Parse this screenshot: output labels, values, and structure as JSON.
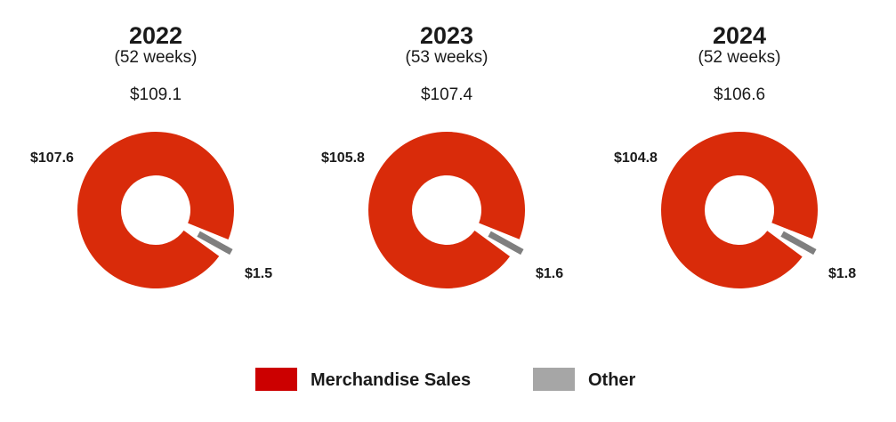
{
  "colors": {
    "merchandise": "#d92b0a",
    "merchandise_legend": "#cc0000",
    "other": "#7f7f7f",
    "other_legend": "#a6a6a6"
  },
  "chart_data": [
    {
      "type": "pie",
      "title": "2022",
      "subtitle": "(52 weeks)",
      "total_label": "$109.1",
      "total": 109.1,
      "slices": [
        {
          "name": "Merchandise Sales",
          "value": 107.6,
          "label": "$107.6"
        },
        {
          "name": "Other",
          "value": 1.5,
          "label": "$1.5"
        }
      ]
    },
    {
      "type": "pie",
      "title": "2023",
      "subtitle": "(53 weeks)",
      "total_label": "$107.4",
      "total": 107.4,
      "slices": [
        {
          "name": "Merchandise Sales",
          "value": 105.8,
          "label": "$105.8"
        },
        {
          "name": "Other",
          "value": 1.6,
          "label": "$1.6"
        }
      ]
    },
    {
      "type": "pie",
      "title": "2024",
      "subtitle": "(52 weeks)",
      "total_label": "$106.6",
      "total": 106.6,
      "slices": [
        {
          "name": "Merchandise Sales",
          "value": 104.8,
          "label": "$104.8"
        },
        {
          "name": "Other",
          "value": 1.8,
          "label": "$1.8"
        }
      ]
    }
  ],
  "legend": {
    "position": "bottom",
    "items": [
      {
        "label": "Merchandise Sales",
        "color_key": "merchandise_legend"
      },
      {
        "label": "Other",
        "color_key": "other_legend"
      }
    ]
  }
}
